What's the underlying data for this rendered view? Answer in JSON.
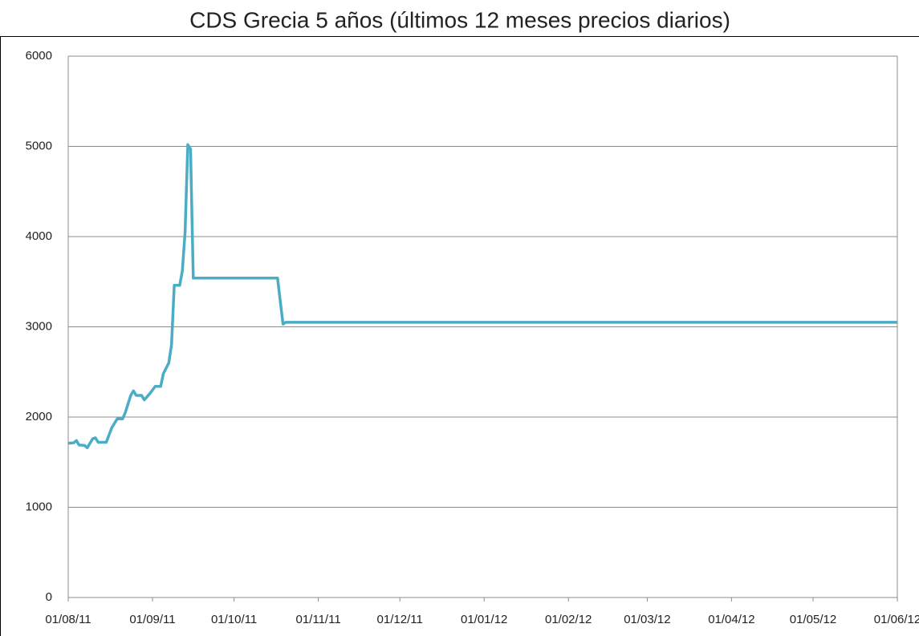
{
  "chart_data": {
    "type": "line",
    "title": "CDS Grecia 5 años (últimos 12 meses precios diarios)",
    "x": [
      "2011-08-01",
      "2011-08-03",
      "2011-08-04",
      "2011-08-05",
      "2011-08-07",
      "2011-08-08",
      "2011-08-10",
      "2011-08-11",
      "2011-08-12",
      "2011-08-15",
      "2011-08-16",
      "2011-08-17",
      "2011-08-19",
      "2011-08-21",
      "2011-08-22",
      "2011-08-24",
      "2011-08-25",
      "2011-08-26",
      "2011-08-28",
      "2011-08-29",
      "2011-08-31",
      "2011-09-02",
      "2011-09-04",
      "2011-09-05",
      "2011-09-07",
      "2011-09-08",
      "2011-09-09",
      "2011-09-11",
      "2011-09-12",
      "2011-09-13",
      "2011-09-14",
      "2011-09-15",
      "2011-09-16",
      "2011-10-17",
      "2011-10-19",
      "2011-10-20",
      "2012-06-01"
    ],
    "series": [
      {
        "name": "CDS Grecia 5 años",
        "color": "#4bacc6",
        "values": [
          1710,
          1715,
          1740,
          1690,
          1685,
          1660,
          1760,
          1770,
          1720,
          1720,
          1800,
          1880,
          1980,
          1980,
          2050,
          2240,
          2290,
          2240,
          2240,
          2190,
          2260,
          2340,
          2340,
          2480,
          2600,
          2800,
          3460,
          3460,
          3620,
          4050,
          5020,
          4970,
          3540,
          3540,
          3030,
          3050,
          3050
        ]
      }
    ],
    "xlim": [
      "2011-08-01",
      "2012-06-01"
    ],
    "xticks": [
      {
        "value": "2011-08-01",
        "label": "01/08/11"
      },
      {
        "value": "2011-09-01",
        "label": "01/09/11"
      },
      {
        "value": "2011-10-01",
        "label": "01/10/11"
      },
      {
        "value": "2011-11-01",
        "label": "01/11/11"
      },
      {
        "value": "2011-12-01",
        "label": "01/12/11"
      },
      {
        "value": "2012-01-01",
        "label": "01/01/12"
      },
      {
        "value": "2012-02-01",
        "label": "01/02/12"
      },
      {
        "value": "2012-03-01",
        "label": "01/03/12"
      },
      {
        "value": "2012-04-01",
        "label": "01/04/12"
      },
      {
        "value": "2012-05-01",
        "label": "01/05/12"
      },
      {
        "value": "2012-06-01",
        "label": "01/06/12"
      }
    ],
    "ylim": [
      0,
      6000
    ],
    "yticks": [
      0,
      1000,
      2000,
      3000,
      4000,
      5000,
      6000
    ],
    "grid": true
  }
}
